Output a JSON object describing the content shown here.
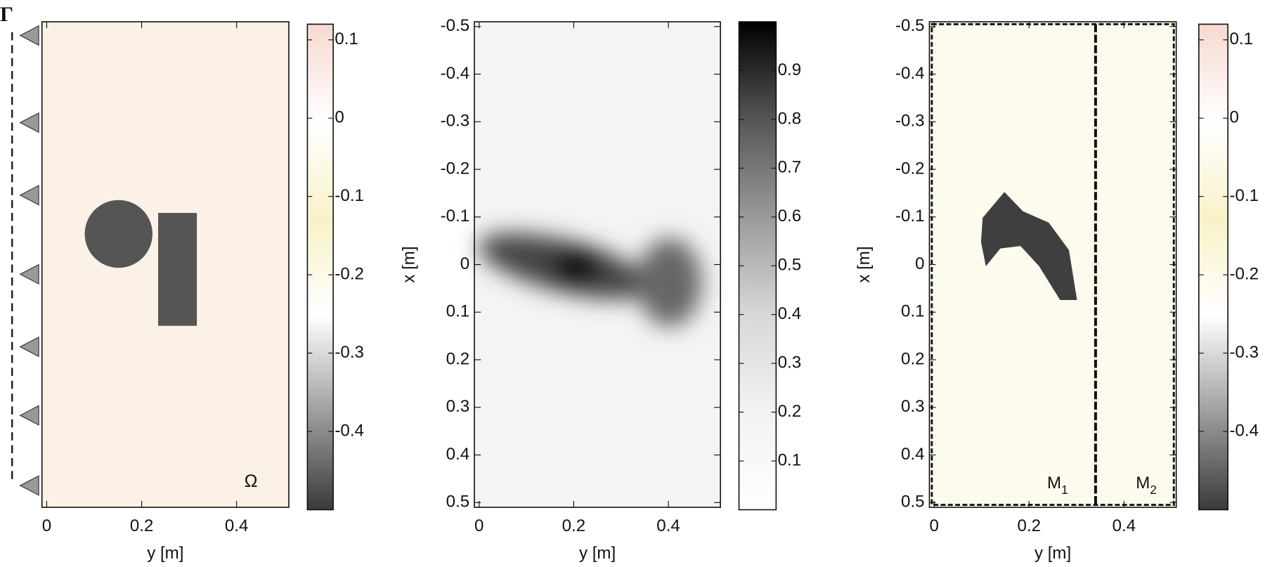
{
  "chart_data": [
    {
      "type": "heatmap",
      "xlabel": "y [m]",
      "xlim": [
        -0.01,
        0.51
      ],
      "xticks": [
        0,
        0.2,
        0.4
      ],
      "ylim": [
        -0.51,
        0.51
      ],
      "colorbar": {
        "lim": [
          -0.5,
          0.12
        ],
        "ticks": [
          0.1,
          0,
          -0.1,
          -0.2,
          -0.3,
          -0.4
        ],
        "colormap": [
          "#f7d9d0",
          "#ffffff",
          "#f8f2c8",
          "#ffffff",
          "#9e9e9e",
          "#3a3a3a"
        ]
      },
      "annotations": [
        {
          "text": "Ω"
        },
        {
          "text": "Γ"
        }
      ]
    },
    {
      "type": "heatmap",
      "xlabel": "y [m]",
      "ylabel": "x [m]",
      "xlim": [
        -0.01,
        0.51
      ],
      "xticks": [
        0,
        0.2,
        0.4
      ],
      "ylim": [
        -0.51,
        0.51
      ],
      "yticks": [
        -0.5,
        -0.4,
        -0.3,
        -0.2,
        -0.1,
        0,
        0.1,
        0.2,
        0.3,
        0.4,
        0.5
      ],
      "colorbar": {
        "lim": [
          0,
          1
        ],
        "ticks": [
          0.9,
          0.8,
          0.7,
          0.6,
          0.5,
          0.4,
          0.3,
          0.2,
          0.1
        ],
        "colormap": [
          "#000000",
          "#555555",
          "#9a9a9a",
          "#d8d8d8",
          "#f2f2f2",
          "#ffffff"
        ]
      }
    },
    {
      "type": "heatmap",
      "xlabel": "y [m]",
      "ylabel": "x [m]",
      "xlim": [
        -0.01,
        0.51
      ],
      "xticks": [
        0,
        0.2,
        0.4
      ],
      "ylim": [
        -0.51,
        0.51
      ],
      "yticks": [
        -0.5,
        -0.4,
        -0.3,
        -0.2,
        -0.1,
        0,
        0.1,
        0.2,
        0.3,
        0.4,
        0.5
      ],
      "colorbar": {
        "lim": [
          -0.5,
          0.12
        ],
        "ticks": [
          0.1,
          0,
          -0.1,
          -0.2,
          -0.3,
          -0.4
        ],
        "colormap": [
          "#f7d9d0",
          "#ffffff",
          "#f8f2c8",
          "#ffffff",
          "#9e9e9e",
          "#3a3a3a"
        ]
      },
      "annotations": [
        {
          "text": "M",
          "sub": "1"
        },
        {
          "text": "M",
          "sub": "2"
        }
      ]
    }
  ]
}
